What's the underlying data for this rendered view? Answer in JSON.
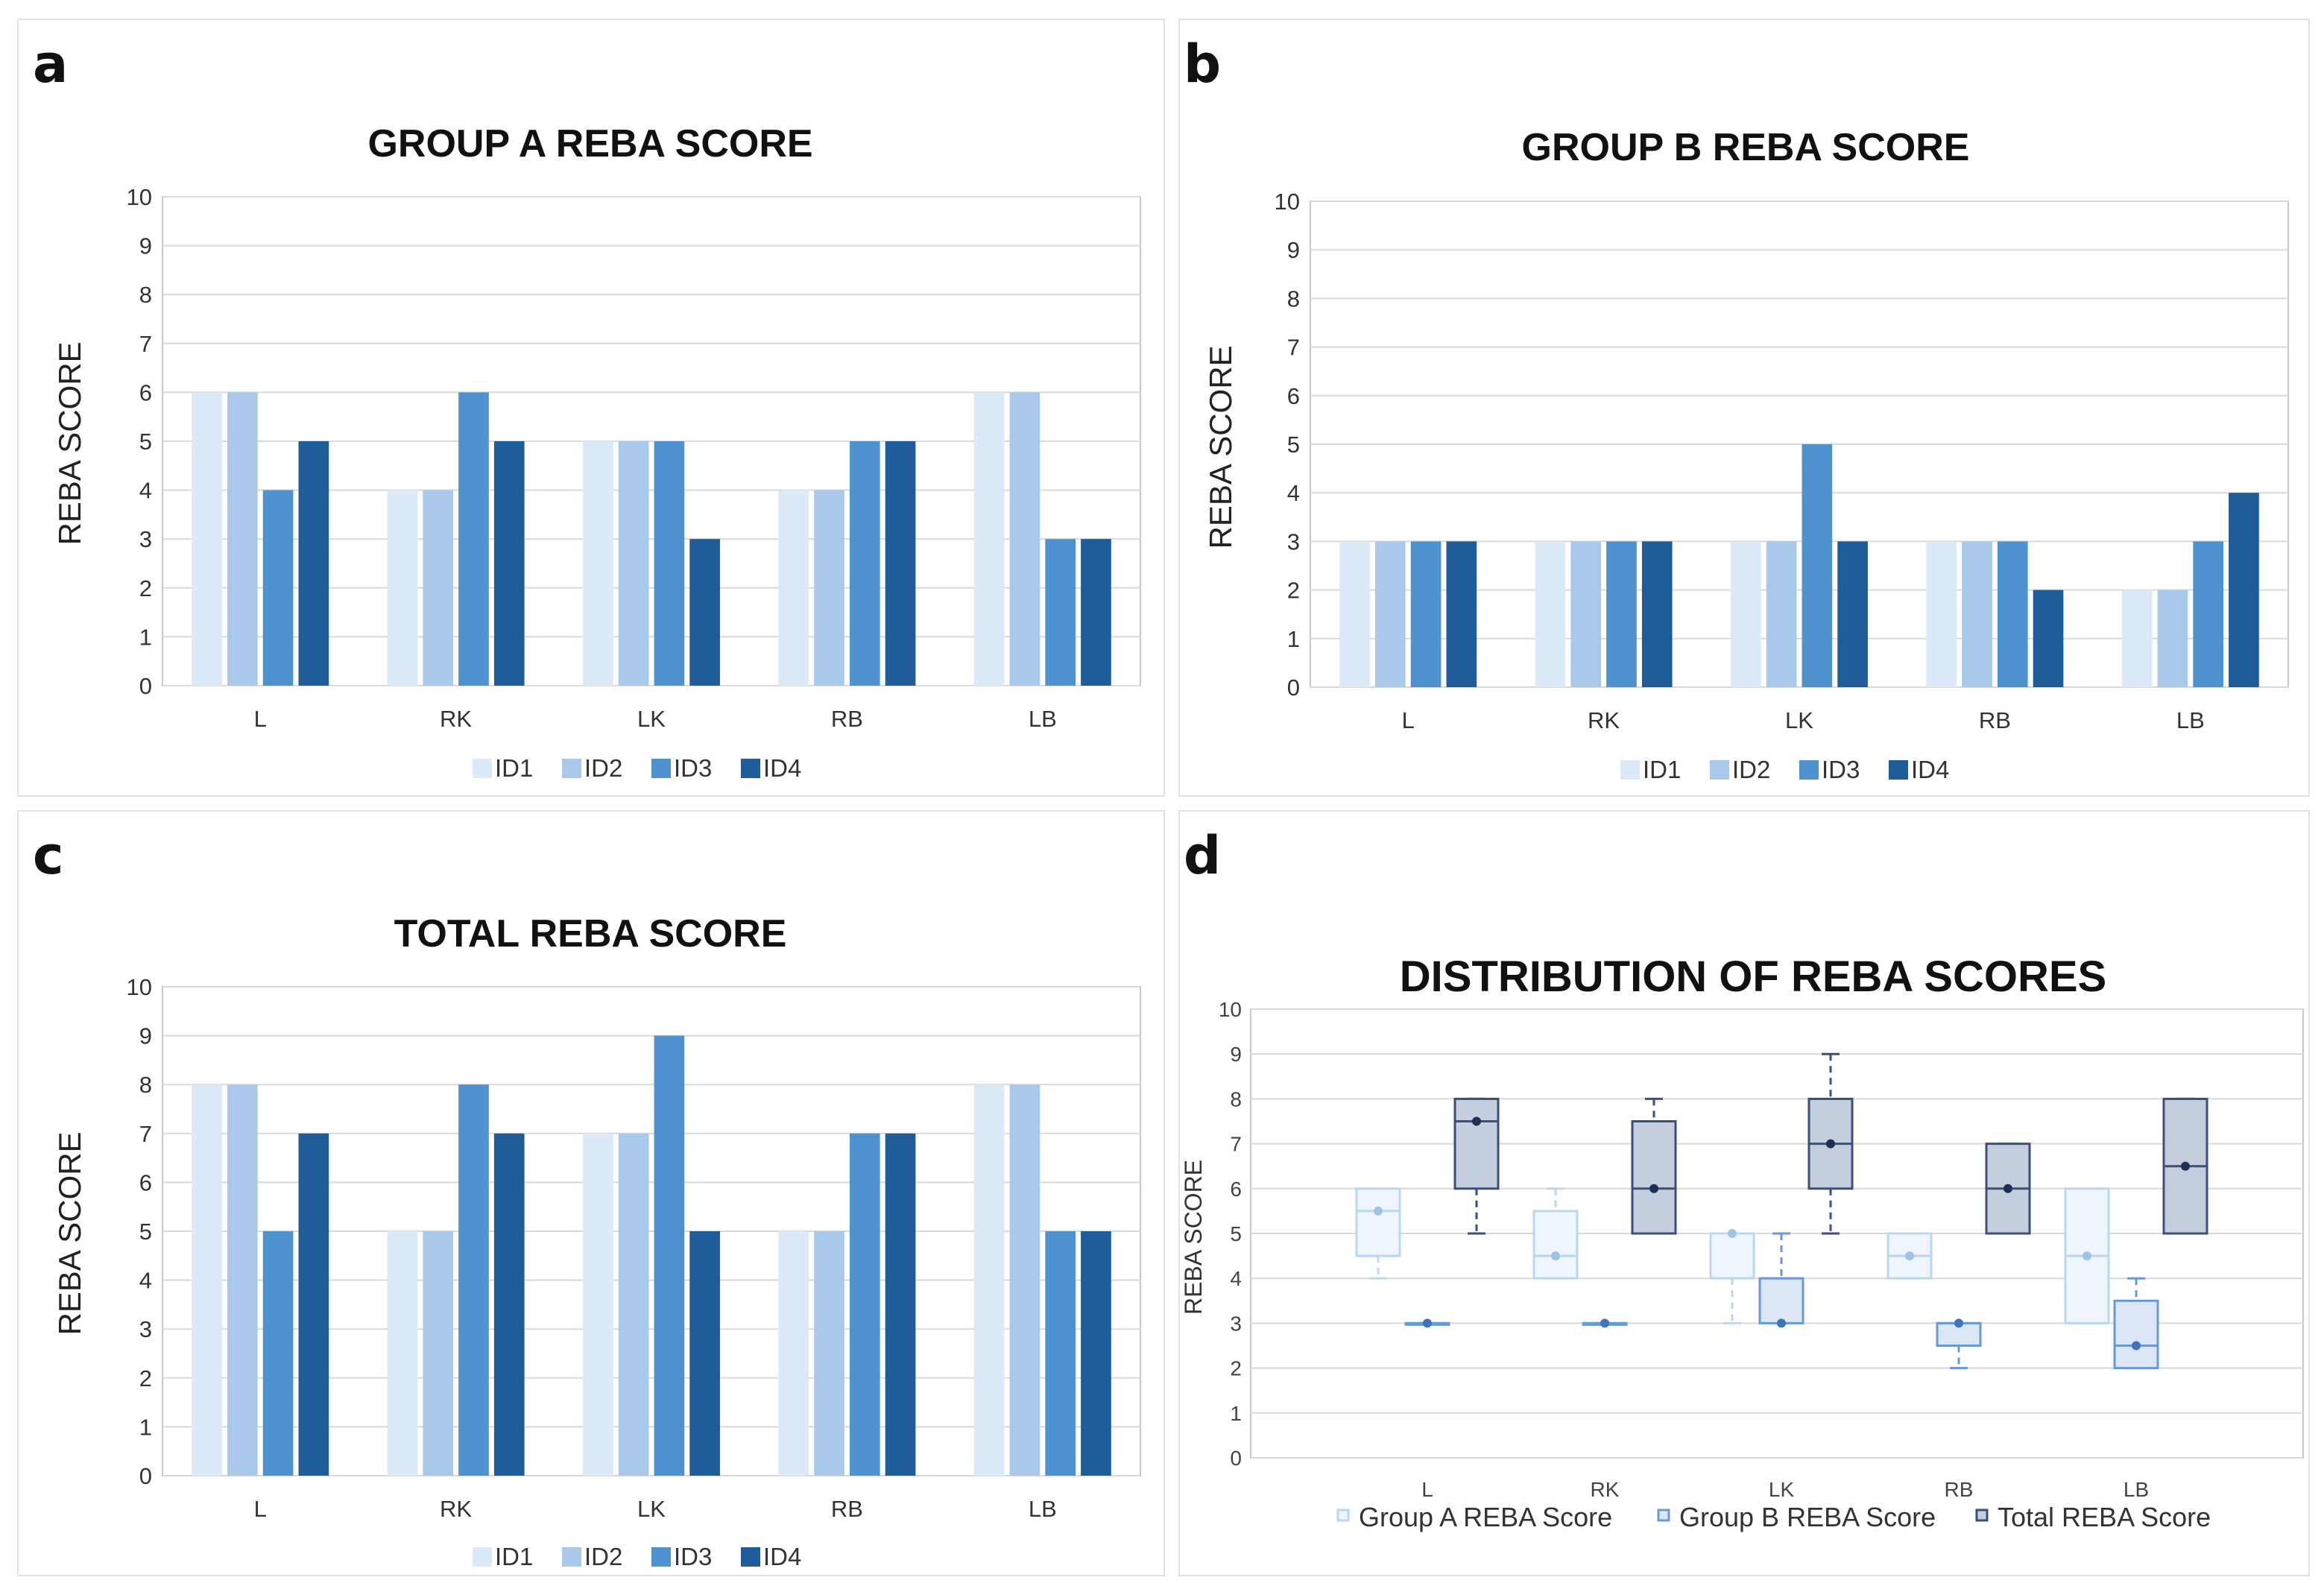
{
  "panels": [
    "a",
    "b",
    "c",
    "d"
  ],
  "colors": {
    "ID1": "#dce9f6",
    "ID2": "#a8c9ea",
    "ID3": "#4f92d0",
    "ID4": "#1f5c99",
    "grid": "#d9d9d9",
    "border": "#c8c8c8",
    "groupA": "#b9d3ee",
    "groupB": "#5f8fd0",
    "total": "#2b3f6b"
  },
  "chart_data": [
    {
      "type": "bar",
      "title": "GROUP A REBA SCORE",
      "xlabel": "",
      "ylabel": "REBA SCORE",
      "ylim": [
        0,
        10
      ],
      "yticks": [
        "0",
        "1",
        "2",
        "3",
        "4",
        "5",
        "6",
        "7",
        "8",
        "9",
        "10"
      ],
      "grid": true,
      "legend": "bottom",
      "categories": [
        "L",
        "RK",
        "LK",
        "RB",
        "LB"
      ],
      "series": [
        {
          "name": "ID1",
          "values": [
            6,
            4,
            5,
            4,
            6
          ]
        },
        {
          "name": "ID2",
          "values": [
            6,
            4,
            5,
            4,
            6
          ]
        },
        {
          "name": "ID3",
          "values": [
            4,
            6,
            5,
            5,
            3
          ]
        },
        {
          "name": "ID4",
          "values": [
            5,
            5,
            3,
            5,
            3
          ]
        }
      ]
    },
    {
      "type": "bar",
      "title": "GROUP B REBA SCORE",
      "xlabel": "",
      "ylabel": "REBA SCORE",
      "ylim": [
        0,
        10
      ],
      "yticks": [
        "0",
        "1",
        "2",
        "3",
        "4",
        "5",
        "6",
        "7",
        "8",
        "9",
        "10"
      ],
      "grid": true,
      "legend": "bottom",
      "categories": [
        "L",
        "RK",
        "LK",
        "RB",
        "LB"
      ],
      "series": [
        {
          "name": "ID1",
          "values": [
            3,
            3,
            3,
            3,
            2
          ]
        },
        {
          "name": "ID2",
          "values": [
            3,
            3,
            3,
            3,
            2
          ]
        },
        {
          "name": "ID3",
          "values": [
            3,
            3,
            5,
            3,
            3
          ]
        },
        {
          "name": "ID4",
          "values": [
            3,
            3,
            3,
            2,
            4
          ]
        }
      ]
    },
    {
      "type": "bar",
      "title": "TOTAL REBA SCORE",
      "xlabel": "",
      "ylabel": "REBA SCORE",
      "ylim": [
        0,
        10
      ],
      "yticks": [
        "0",
        "1",
        "2",
        "3",
        "4",
        "5",
        "6",
        "7",
        "8",
        "9",
        "10"
      ],
      "grid": true,
      "legend": "bottom",
      "categories": [
        "L",
        "RK",
        "LK",
        "RB",
        "LB"
      ],
      "series": [
        {
          "name": "ID1",
          "values": [
            8,
            5,
            7,
            5,
            8
          ]
        },
        {
          "name": "ID2",
          "values": [
            8,
            5,
            7,
            5,
            8
          ]
        },
        {
          "name": "ID3",
          "values": [
            5,
            8,
            9,
            7,
            5
          ]
        },
        {
          "name": "ID4",
          "values": [
            7,
            7,
            5,
            7,
            5
          ]
        }
      ]
    },
    {
      "type": "box",
      "title": "DISTRIBUTION OF REBA SCORES",
      "xlabel": "",
      "ylabel": "REBA SCORE",
      "ylim": [
        0,
        10
      ],
      "yticks": [
        "0",
        "1",
        "2",
        "3",
        "4",
        "5",
        "6",
        "7",
        "8",
        "9",
        "10"
      ],
      "grid": true,
      "legend": "bottom",
      "categories": [
        "L",
        "RK",
        "LK",
        "RB",
        "LB"
      ],
      "series": [
        {
          "name": "Group A REBA Score",
          "boxes": [
            {
              "min": 4,
              "q1": 4.5,
              "median": 5.5,
              "q3": 6,
              "max": 6
            },
            {
              "min": 4,
              "q1": 4,
              "median": 4.5,
              "q3": 5.5,
              "max": 6
            },
            {
              "min": 3,
              "q1": 4,
              "median": 5,
              "q3": 5,
              "max": 5
            },
            {
              "min": 4,
              "q1": 4,
              "median": 4.5,
              "q3": 5,
              "max": 5
            },
            {
              "min": 3,
              "q1": 3,
              "median": 4.5,
              "q3": 6,
              "max": 6
            }
          ]
        },
        {
          "name": "Group B REBA Score",
          "boxes": [
            {
              "min": 3,
              "q1": 3,
              "median": 3,
              "q3": 3,
              "max": 3
            },
            {
              "min": 3,
              "q1": 3,
              "median": 3,
              "q3": 3,
              "max": 3
            },
            {
              "min": 3,
              "q1": 3,
              "median": 3,
              "q3": 4,
              "max": 5
            },
            {
              "min": 2,
              "q1": 2.5,
              "median": 3,
              "q3": 3,
              "max": 3
            },
            {
              "min": 2,
              "q1": 2,
              "median": 2.5,
              "q3": 3.5,
              "max": 4
            }
          ]
        },
        {
          "name": "Total REBA Score",
          "boxes": [
            {
              "min": 5,
              "q1": 6,
              "median": 7.5,
              "q3": 8,
              "max": 8
            },
            {
              "min": 5,
              "q1": 5,
              "median": 6,
              "q3": 7.5,
              "max": 8
            },
            {
              "min": 5,
              "q1": 6,
              "median": 7,
              "q3": 8,
              "max": 9
            },
            {
              "min": 5,
              "q1": 5,
              "median": 6,
              "q3": 7,
              "max": 7
            },
            {
              "min": 5,
              "q1": 5,
              "median": 6.5,
              "q3": 8,
              "max": 8
            }
          ]
        }
      ]
    }
  ]
}
